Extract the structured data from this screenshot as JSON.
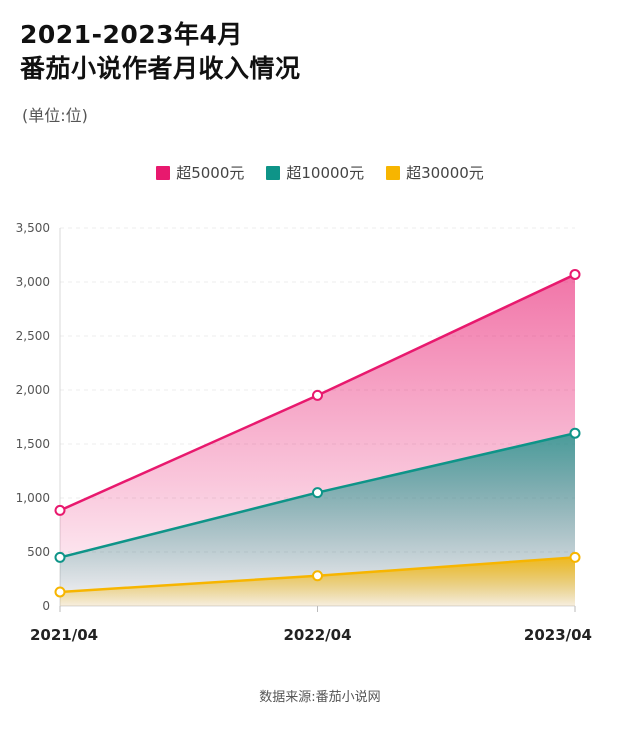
{
  "header": {
    "title_line1": "2021-2023年4月",
    "title_line2": "番茄小说作者月收入情况",
    "unit": "(单位:位)"
  },
  "source": "数据来源:番茄小说网",
  "chart_data": {
    "type": "area",
    "categories": [
      "2021/04",
      "2022/04",
      "2023/04"
    ],
    "series": [
      {
        "name": "超5000元",
        "color": "#e8196e",
        "values": [
          885,
          1950,
          3070
        ]
      },
      {
        "name": "超10000元",
        "color": "#0e9488",
        "values": [
          450,
          1050,
          1600
        ]
      },
      {
        "name": "超30000元",
        "color": "#f7b500",
        "values": [
          130,
          280,
          450
        ]
      }
    ],
    "yticks": [
      "0",
      "500",
      "1,000",
      "1,500",
      "2,000",
      "2,500",
      "3,000",
      "3,500"
    ],
    "ylim": [
      0,
      3500
    ],
    "grid": true,
    "legend_position": "top-center"
  }
}
